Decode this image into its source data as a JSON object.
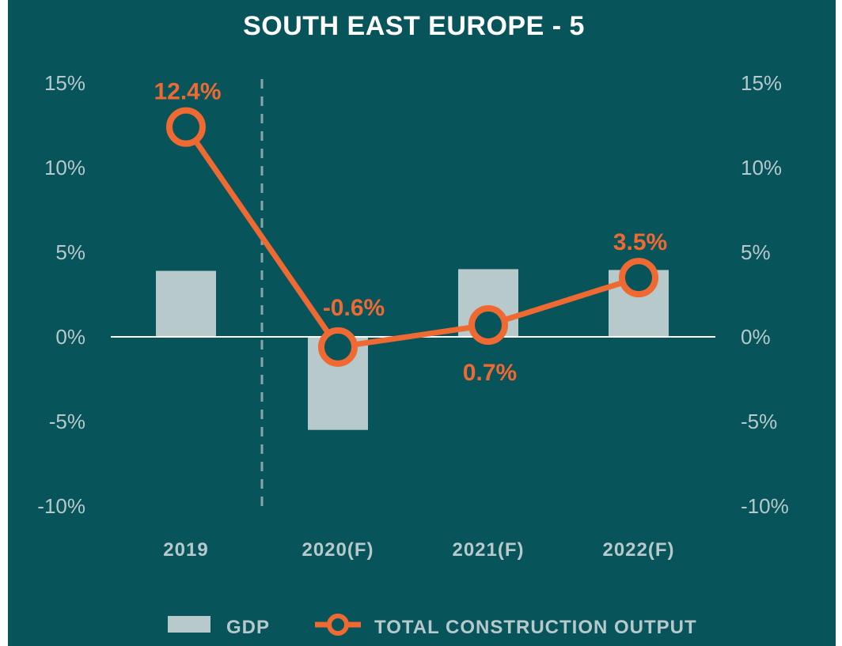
{
  "colors": {
    "background": "#07545a",
    "gdp_bar": "#b7c9cb",
    "construction_line": "#ee6a32",
    "text": "#b7c9cb",
    "title": "#ffffff",
    "zero_line": "#ffffff",
    "divider": "#8aa4a7"
  },
  "chart_data": {
    "type": "bar",
    "title": "SOUTH EAST EUROPE - 5",
    "categories": [
      "2019",
      "2020(F)",
      "2021(F)",
      "2022(F)"
    ],
    "ylim": [
      -10,
      15
    ],
    "yticks": [
      "15%",
      "10%",
      "5%",
      "0%",
      "-5%",
      "-10%"
    ],
    "ytick_values": [
      15,
      10,
      5,
      0,
      -5,
      -10
    ],
    "secondary_axis": true,
    "legend_position": "bottom",
    "series": [
      {
        "name": "GDP",
        "kind": "bar",
        "values": [
          3.9,
          -5.5,
          4.0,
          3.95
        ]
      },
      {
        "name": "TOTAL CONSTRUCTION OUTPUT",
        "kind": "line",
        "values": [
          12.4,
          -0.6,
          0.7,
          3.5
        ],
        "labels": [
          "12.4%",
          "-0.6%",
          "0.7%",
          "3.5%"
        ]
      }
    ],
    "annotations": [
      "dashed vertical divider between 2019 and 2020(F)"
    ]
  }
}
